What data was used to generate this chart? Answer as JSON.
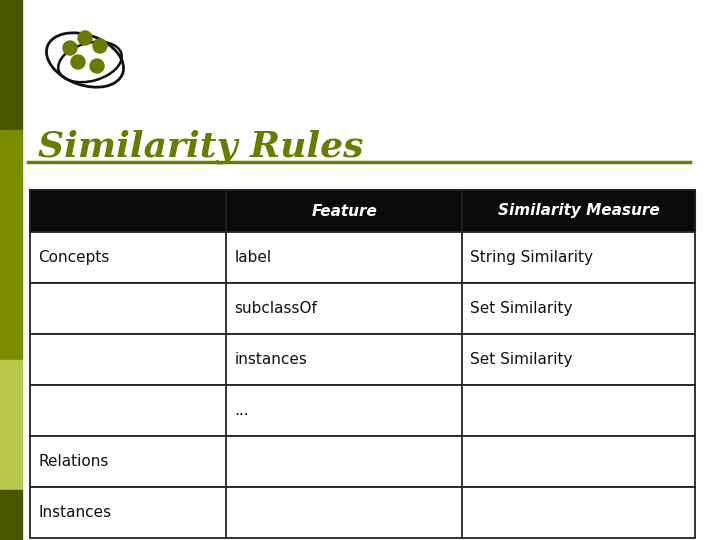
{
  "title": "Similarity Rules",
  "title_color": "#6b7a00",
  "title_fontsize": 26,
  "bg_color": "#ffffff",
  "left_bar_dark": "#4a5500",
  "left_bar_mid": "#7a8c00",
  "left_bar_light": "#b8c84a",
  "header_bg": "#0a0a0a",
  "header_text_color": "#ffffff",
  "header_cols": [
    "",
    "Feature",
    "Similarity Measure"
  ],
  "rows": [
    [
      "Concepts",
      "label",
      "String Similarity"
    ],
    [
      "",
      "subclassOf",
      "Set Similarity"
    ],
    [
      "",
      "instances",
      "Set Similarity"
    ],
    [
      "",
      "...",
      ""
    ],
    [
      "Relations",
      "",
      ""
    ],
    [
      "Instances",
      "",
      ""
    ]
  ],
  "line_color": "#222222",
  "cell_text_color": "#111111",
  "icon_olive": "#6b7a00"
}
